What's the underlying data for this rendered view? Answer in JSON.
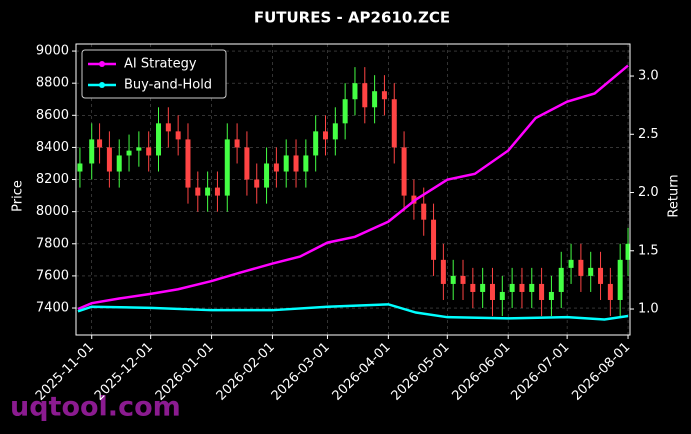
{
  "chart_data": {
    "type": "candlestick",
    "title": "FUTURES - AP2610.ZCE",
    "ylabel": "Price",
    "y2label": "Return",
    "watermark": "uqtool.com",
    "x": [
      "2025-10-26",
      "2025-11-01",
      "2025-11-05",
      "2025-11-10",
      "2025-11-15",
      "2025-11-20",
      "2025-11-25",
      "2025-11-30",
      "2025-12-05",
      "2025-12-10",
      "2025-12-15",
      "2025-12-20",
      "2025-12-25",
      "2025-12-30",
      "2026-01-04",
      "2026-01-09",
      "2026-01-14",
      "2026-01-19",
      "2026-01-24",
      "2026-01-29",
      "2026-02-03",
      "2026-02-08",
      "2026-02-13",
      "2026-02-18",
      "2026-02-23",
      "2026-02-28",
      "2026-03-05",
      "2026-03-10",
      "2026-03-15",
      "2026-03-20",
      "2026-03-25",
      "2026-03-30",
      "2026-04-04",
      "2026-04-09",
      "2026-04-14",
      "2026-04-19",
      "2026-04-24",
      "2026-04-29",
      "2026-05-04",
      "2026-05-09",
      "2026-05-14",
      "2026-05-19",
      "2026-05-24",
      "2026-05-29",
      "2026-06-03",
      "2026-06-08",
      "2026-06-13",
      "2026-06-18",
      "2026-06-23",
      "2026-06-28",
      "2026-07-03",
      "2026-07-08",
      "2026-07-13",
      "2026-07-18",
      "2026-07-23",
      "2026-07-28",
      "2026-08-01"
    ],
    "open": [
      8250,
      8300,
      8450,
      8400,
      8250,
      8350,
      8380,
      8400,
      8350,
      8550,
      8500,
      8450,
      8150,
      8100,
      8150,
      8100,
      8450,
      8400,
      8200,
      8150,
      8300,
      8250,
      8350,
      8250,
      8350,
      8500,
      8450,
      8550,
      8700,
      8800,
      8650,
      8750,
      8700,
      8400,
      8100,
      8050,
      7950,
      7700,
      7550,
      7600,
      7550,
      7500,
      7550,
      7450,
      7500,
      7550,
      7500,
      7550,
      7450,
      7500,
      7650,
      7700,
      7600,
      7650,
      7550,
      7450,
      7700
    ],
    "high": [
      8400,
      8550,
      8550,
      8500,
      8450,
      8480,
      8500,
      8500,
      8650,
      8650,
      8600,
      8550,
      8250,
      8250,
      8250,
      8550,
      8550,
      8500,
      8300,
      8400,
      8400,
      8450,
      8450,
      8450,
      8600,
      8600,
      8650,
      8800,
      8900,
      8900,
      8850,
      8850,
      8800,
      8500,
      8200,
      8150,
      8050,
      7800,
      7700,
      7700,
      7650,
      7650,
      7650,
      7600,
      7650,
      7650,
      7650,
      7650,
      7600,
      7750,
      7800,
      7800,
      7750,
      7750,
      7650,
      7800,
      7900
    ],
    "low": [
      8150,
      8200,
      8300,
      8150,
      8150,
      8250,
      8280,
      8250,
      8250,
      8400,
      8350,
      8050,
      8000,
      8000,
      8000,
      8000,
      8300,
      8100,
      8050,
      8050,
      8150,
      8150,
      8150,
      8150,
      8250,
      8350,
      8350,
      8450,
      8600,
      8550,
      8550,
      8600,
      8300,
      8000,
      7950,
      7850,
      7600,
      7450,
      7450,
      7450,
      7400,
      7400,
      7350,
      7350,
      7400,
      7400,
      7400,
      7350,
      7350,
      7400,
      7550,
      7500,
      7500,
      7450,
      7350,
      7350,
      7600
    ],
    "close": [
      8300,
      8450,
      8400,
      8250,
      8350,
      8380,
      8400,
      8350,
      8550,
      8500,
      8450,
      8150,
      8100,
      8150,
      8100,
      8450,
      8400,
      8200,
      8150,
      8300,
      8250,
      8350,
      8250,
      8350,
      8500,
      8450,
      8550,
      8700,
      8800,
      8650,
      8750,
      8700,
      8400,
      8100,
      8050,
      7950,
      7700,
      7550,
      7600,
      7550,
      7500,
      7550,
      7450,
      7500,
      7550,
      7500,
      7550,
      7450,
      7500,
      7650,
      7700,
      7600,
      7650,
      7550,
      7450,
      7700,
      7800
    ],
    "up_color": "#44ff44",
    "down_color": "#ff4444",
    "series": [
      {
        "name": "AI Strategy",
        "type": "line",
        "axis": "y2",
        "color": "#ff00ff",
        "x": [
          "2025-10-25",
          "2025-11-01",
          "2025-11-15",
          "2025-12-01",
          "2025-12-15",
          "2026-01-01",
          "2026-01-15",
          "2026-02-01",
          "2026-02-15",
          "2026-03-01",
          "2026-03-15",
          "2026-04-01",
          "2026-04-15",
          "2026-05-01",
          "2026-05-15",
          "2026-06-01",
          "2026-06-15",
          "2026-07-01",
          "2026-07-15",
          "2026-08-01"
        ],
        "values": [
          1.0,
          1.05,
          1.09,
          1.13,
          1.17,
          1.24,
          1.31,
          1.39,
          1.45,
          1.57,
          1.62,
          1.75,
          1.94,
          2.11,
          2.16,
          2.36,
          2.64,
          2.78,
          2.85,
          3.09
        ]
      },
      {
        "name": "Buy-and-Hold",
        "type": "line",
        "axis": "y2",
        "color": "#00ffff",
        "x": [
          "2025-10-25",
          "2025-11-01",
          "2025-12-01",
          "2026-01-01",
          "2026-02-01",
          "2026-03-01",
          "2026-04-01",
          "2026-04-15",
          "2026-05-01",
          "2026-06-01",
          "2026-07-01",
          "2026-07-20",
          "2026-08-01"
        ],
        "values": [
          0.98,
          1.02,
          1.01,
          0.99,
          0.99,
          1.02,
          1.04,
          0.97,
          0.93,
          0.92,
          0.93,
          0.91,
          0.94
        ]
      }
    ],
    "xlim": [
      "2025-10-24",
      "2026-08-02"
    ],
    "xticks": [
      "2025-11-01",
      "2025-12-01",
      "2026-01-01",
      "2026-02-01",
      "2026-03-01",
      "2026-04-01",
      "2026-05-01",
      "2026-06-01",
      "2026-07-01",
      "2026-08-01"
    ],
    "ylim": [
      7232,
      9044
    ],
    "yticks": [
      7400,
      7600,
      7800,
      8000,
      8200,
      8400,
      8600,
      8800,
      9000
    ],
    "y2lim": [
      0.777,
      3.275
    ],
    "y2ticks": [
      {
        "value": 1,
        "label": "1.0"
      },
      1.5,
      {
        "value": 2,
        "label": "2.0"
      },
      2.5,
      {
        "value": 3,
        "label": "3.0"
      }
    ],
    "grid": true,
    "legend": "upper left"
  }
}
